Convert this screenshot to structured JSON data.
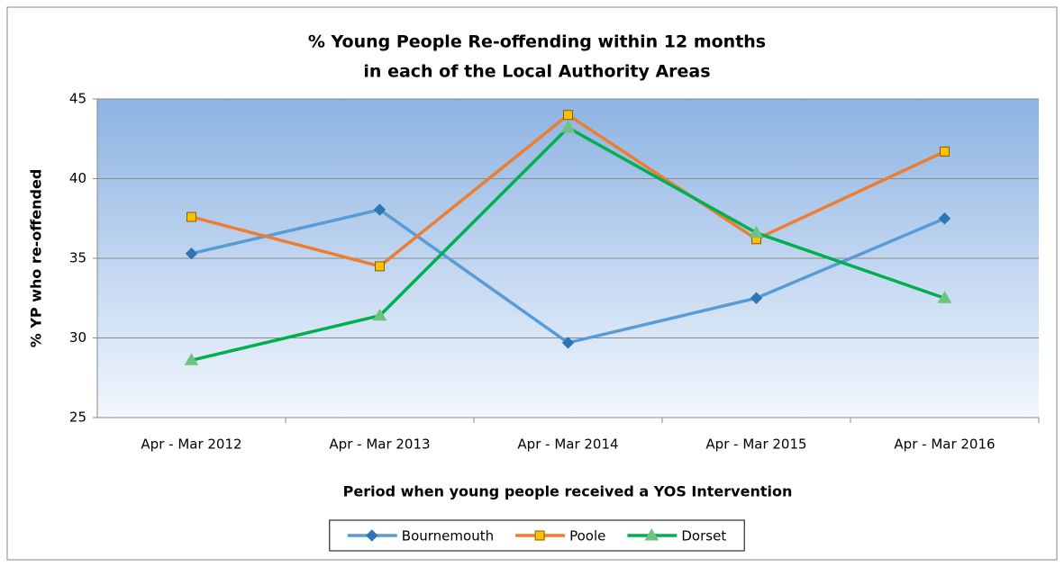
{
  "chart_data": {
    "type": "line",
    "title": [
      "% Young People Re-offending within 12 months",
      "in each of the Local Authority Areas"
    ],
    "x_label": "Period when young people received a YOS Intervention",
    "y_label": "% YP who re-offended",
    "categories": [
      "Apr - Mar 2012",
      "Apr - Mar 2013",
      "Apr - Mar 2014",
      "Apr - Mar 2015",
      "Apr - Mar 2016"
    ],
    "series": [
      {
        "name": "Bournemouth",
        "color": "#5b9bd5",
        "marker": "diamond",
        "marker_color": "#2e75b6",
        "values": [
          35.3,
          38.05,
          29.7,
          32.5,
          37.5
        ]
      },
      {
        "name": "Poole",
        "color": "#ed7d31",
        "marker": "square",
        "marker_color": "#ffc000",
        "values": [
          37.6,
          34.5,
          44.0,
          36.2,
          41.7
        ]
      },
      {
        "name": "Dorset",
        "color": "#00b050",
        "marker": "triangle",
        "marker_color": "#70c080",
        "values": [
          28.6,
          31.4,
          43.2,
          36.6,
          32.5
        ]
      }
    ],
    "ylim": [
      25,
      45
    ],
    "yticks": [
      25,
      30,
      35,
      40,
      45
    ],
    "grid": true,
    "legend": "bottom"
  }
}
